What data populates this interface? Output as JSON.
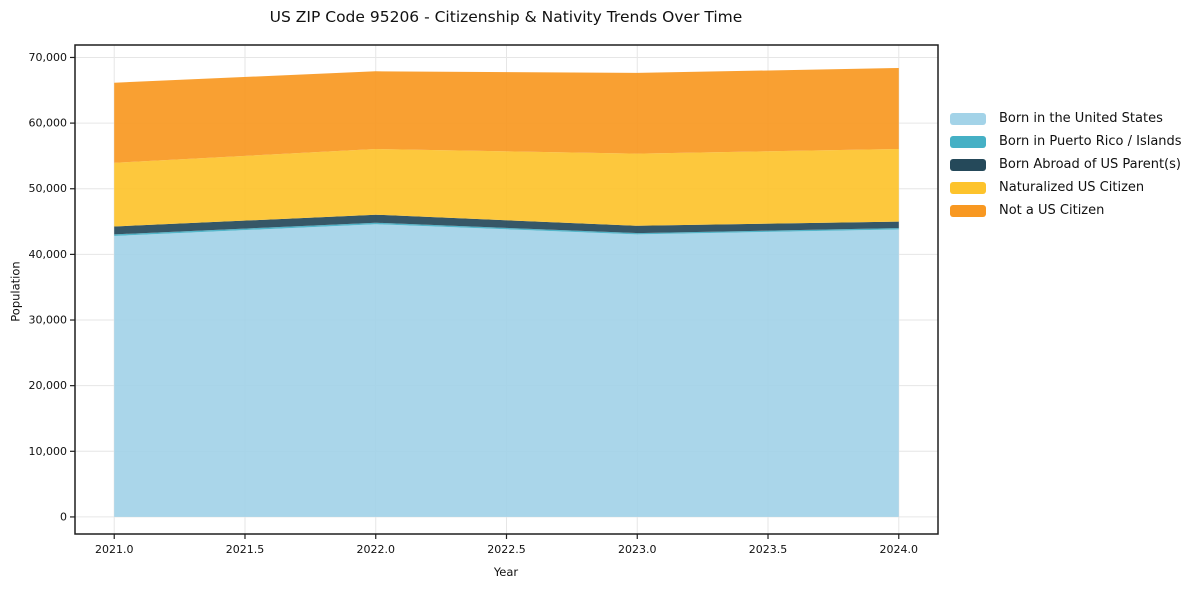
{
  "chart_data": {
    "type": "area",
    "stacked": true,
    "title": "US ZIP Code 95206 - Citizenship & Nativity Trends Over Time",
    "xlabel": "Year",
    "ylabel": "Population",
    "x": [
      2021,
      2022,
      2023,
      2024
    ],
    "series": [
      {
        "name": "Born in the United States",
        "color": "#a3d3e8",
        "values": [
          42800,
          44600,
          43050,
          43800
        ]
      },
      {
        "name": "Born in Puerto Rico / Islands",
        "color": "#45b0c5",
        "values": [
          250,
          230,
          200,
          200
        ]
      },
      {
        "name": "Born Abroad of US Parent(s)",
        "color": "#25495a",
        "values": [
          1200,
          1220,
          1100,
          1000
        ]
      },
      {
        "name": "Naturalized US Citizen",
        "color": "#fdc32c",
        "values": [
          9700,
          10000,
          11000,
          11050
        ]
      },
      {
        "name": "Not a US Citizen",
        "color": "#f89821",
        "values": [
          12200,
          11850,
          12300,
          12350
        ]
      }
    ],
    "totals": [
      66150,
      67900,
      67650,
      68400
    ],
    "xlim": [
      2020.85,
      2024.15
    ],
    "ylim": [
      -2600,
      71900
    ],
    "xticks": [
      2021.0,
      2021.5,
      2022.0,
      2022.5,
      2023.0,
      2023.5,
      2024.0
    ],
    "xtick_labels": [
      "2021.0",
      "2021.5",
      "2022.0",
      "2022.5",
      "2023.0",
      "2023.5",
      "2024.0"
    ],
    "yticks": [
      0,
      10000,
      20000,
      30000,
      40000,
      50000,
      60000,
      70000
    ],
    "ytick_labels": [
      "0",
      "10,000",
      "20,000",
      "30,000",
      "40,000",
      "50,000",
      "60,000",
      "70,000"
    ],
    "grid": true,
    "grid_color": "#e6e6e6",
    "axis_color": "#1f1f1f",
    "fill_opacity": 0.92,
    "legend_position": "right-outside"
  }
}
